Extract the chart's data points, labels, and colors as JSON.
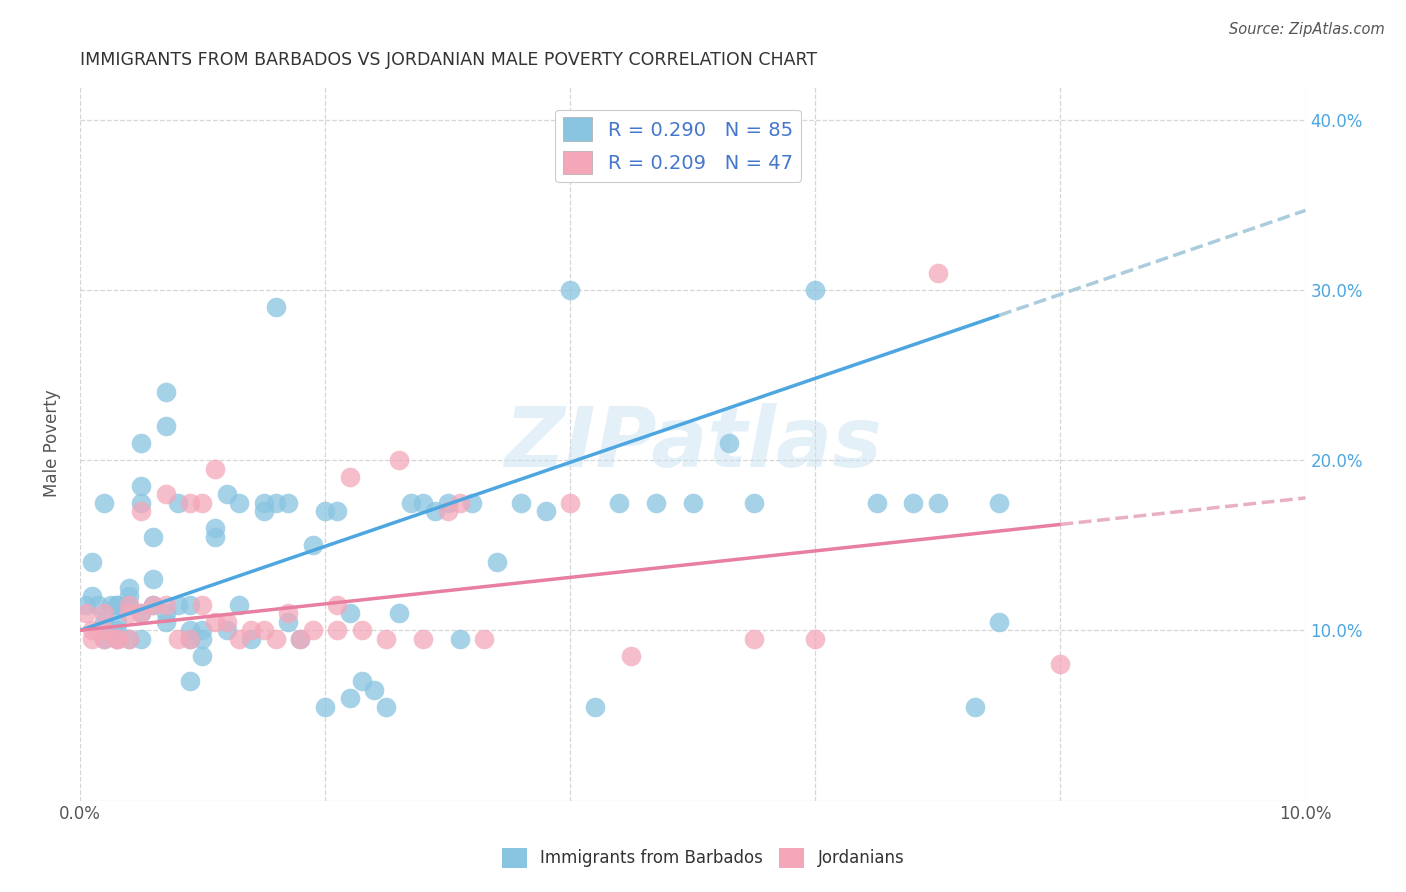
{
  "title": "IMMIGRANTS FROM BARBADOS VS JORDANIAN MALE POVERTY CORRELATION CHART",
  "source": "Source: ZipAtlas.com",
  "ylabel": "Male Poverty",
  "xlim": [
    0.0,
    0.1
  ],
  "ylim": [
    0.0,
    0.42
  ],
  "barbados_color": "#89c4e1",
  "jordan_color": "#f4a7b9",
  "barbados_line_color": "#4da6e0",
  "jordan_line_color": "#e87fa0",
  "barbados_R": 0.29,
  "barbados_N": 85,
  "jordan_R": 0.209,
  "jordan_N": 47,
  "watermark": "ZIPatlas",
  "legend_label_barbados": "Immigrants from Barbados",
  "legend_label_jordan": "Jordanians",
  "barbados_x": [
    0.0005,
    0.001,
    0.001,
    0.0015,
    0.002,
    0.002,
    0.002,
    0.0025,
    0.003,
    0.003,
    0.003,
    0.003,
    0.003,
    0.004,
    0.004,
    0.004,
    0.004,
    0.005,
    0.005,
    0.005,
    0.005,
    0.005,
    0.006,
    0.006,
    0.006,
    0.007,
    0.007,
    0.007,
    0.007,
    0.008,
    0.008,
    0.009,
    0.009,
    0.009,
    0.009,
    0.01,
    0.01,
    0.01,
    0.011,
    0.011,
    0.012,
    0.012,
    0.013,
    0.013,
    0.014,
    0.015,
    0.015,
    0.016,
    0.016,
    0.017,
    0.017,
    0.018,
    0.019,
    0.02,
    0.02,
    0.021,
    0.022,
    0.022,
    0.023,
    0.024,
    0.025,
    0.026,
    0.027,
    0.028,
    0.029,
    0.03,
    0.031,
    0.032,
    0.034,
    0.036,
    0.038,
    0.04,
    0.042,
    0.044,
    0.047,
    0.05,
    0.053,
    0.055,
    0.06,
    0.065,
    0.068,
    0.07,
    0.073,
    0.075,
    0.075
  ],
  "barbados_y": [
    0.115,
    0.14,
    0.12,
    0.115,
    0.105,
    0.095,
    0.175,
    0.115,
    0.1,
    0.115,
    0.095,
    0.115,
    0.105,
    0.12,
    0.095,
    0.115,
    0.125,
    0.11,
    0.095,
    0.175,
    0.185,
    0.21,
    0.115,
    0.13,
    0.155,
    0.105,
    0.11,
    0.22,
    0.24,
    0.115,
    0.175,
    0.095,
    0.1,
    0.115,
    0.07,
    0.1,
    0.085,
    0.095,
    0.155,
    0.16,
    0.18,
    0.1,
    0.115,
    0.175,
    0.095,
    0.17,
    0.175,
    0.175,
    0.29,
    0.175,
    0.105,
    0.095,
    0.15,
    0.17,
    0.055,
    0.17,
    0.06,
    0.11,
    0.07,
    0.065,
    0.055,
    0.11,
    0.175,
    0.175,
    0.17,
    0.175,
    0.095,
    0.175,
    0.14,
    0.175,
    0.17,
    0.3,
    0.055,
    0.175,
    0.175,
    0.175,
    0.21,
    0.175,
    0.3,
    0.175,
    0.175,
    0.175,
    0.055,
    0.105,
    0.175
  ],
  "jordan_x": [
    0.0005,
    0.001,
    0.001,
    0.002,
    0.002,
    0.002,
    0.003,
    0.003,
    0.004,
    0.004,
    0.004,
    0.005,
    0.005,
    0.006,
    0.007,
    0.007,
    0.008,
    0.009,
    0.009,
    0.01,
    0.01,
    0.011,
    0.011,
    0.012,
    0.013,
    0.014,
    0.015,
    0.016,
    0.017,
    0.018,
    0.019,
    0.021,
    0.021,
    0.022,
    0.023,
    0.025,
    0.026,
    0.028,
    0.03,
    0.031,
    0.033,
    0.04,
    0.045,
    0.055,
    0.06,
    0.07,
    0.08
  ],
  "jordan_y": [
    0.11,
    0.095,
    0.1,
    0.095,
    0.11,
    0.1,
    0.095,
    0.095,
    0.115,
    0.11,
    0.095,
    0.11,
    0.17,
    0.115,
    0.115,
    0.18,
    0.095,
    0.095,
    0.175,
    0.115,
    0.175,
    0.105,
    0.195,
    0.105,
    0.095,
    0.1,
    0.1,
    0.095,
    0.11,
    0.095,
    0.1,
    0.115,
    0.1,
    0.19,
    0.1,
    0.095,
    0.2,
    0.095,
    0.17,
    0.175,
    0.095,
    0.175,
    0.085,
    0.095,
    0.095,
    0.31,
    0.08
  ]
}
